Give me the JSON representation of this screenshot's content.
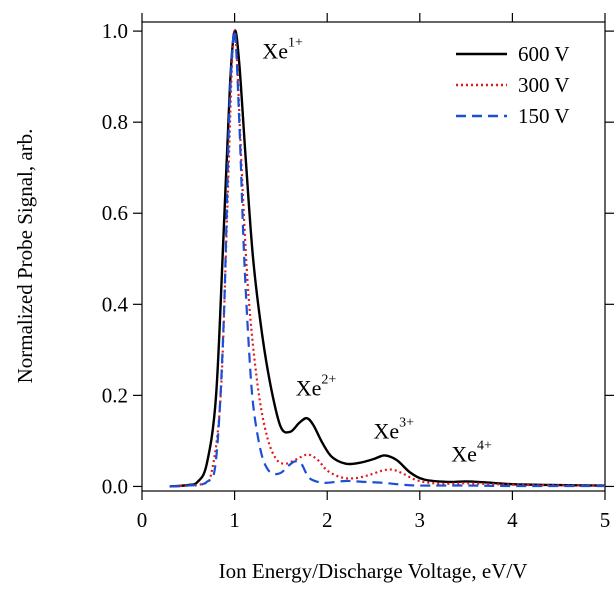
{
  "chart_data": {
    "type": "line",
    "xlabel": "Ion Energy/Discharge Voltage, eV/V",
    "ylabel": "Normalized Probe Signal, arb.",
    "xlim": [
      0,
      5
    ],
    "ylim": [
      -0.01,
      1.02
    ],
    "x_ticks": [
      "0",
      "1",
      "2",
      "3",
      "4",
      "5"
    ],
    "y_ticks": [
      "0.0",
      "0.2",
      "0.4",
      "0.6",
      "0.8",
      "1.0"
    ],
    "grid": false,
    "legend_position": "top-right",
    "series": [
      {
        "name": "600 V",
        "color": "#000000",
        "style": "solid",
        "x": [
          0.3,
          0.5,
          0.6,
          0.7,
          0.8,
          0.88,
          0.95,
          1.0,
          1.05,
          1.12,
          1.2,
          1.3,
          1.4,
          1.5,
          1.6,
          1.7,
          1.78,
          1.85,
          1.95,
          2.05,
          2.2,
          2.35,
          2.5,
          2.62,
          2.75,
          2.9,
          3.05,
          3.3,
          3.5,
          3.7,
          4.0,
          4.5,
          5.0
        ],
        "y": [
          0.0,
          0.003,
          0.01,
          0.05,
          0.2,
          0.55,
          0.88,
          1.0,
          0.93,
          0.72,
          0.5,
          0.33,
          0.21,
          0.13,
          0.12,
          0.14,
          0.15,
          0.135,
          0.095,
          0.065,
          0.05,
          0.052,
          0.06,
          0.068,
          0.058,
          0.03,
          0.015,
          0.01,
          0.011,
          0.009,
          0.005,
          0.003,
          0.002
        ]
      },
      {
        "name": "300 V",
        "color": "#e11b1b",
        "style": "dotted",
        "x": [
          0.3,
          0.5,
          0.65,
          0.75,
          0.85,
          0.92,
          0.97,
          1.0,
          1.03,
          1.08,
          1.15,
          1.25,
          1.35,
          1.45,
          1.55,
          1.65,
          1.72,
          1.8,
          1.9,
          2.0,
          2.15,
          2.3,
          2.45,
          2.6,
          2.7,
          2.8,
          2.95,
          3.1,
          3.3,
          3.5,
          3.8,
          4.2,
          5.0
        ],
        "y": [
          0.0,
          0.002,
          0.006,
          0.03,
          0.2,
          0.6,
          0.92,
          1.0,
          0.92,
          0.68,
          0.42,
          0.22,
          0.11,
          0.06,
          0.05,
          0.058,
          0.065,
          0.07,
          0.058,
          0.035,
          0.02,
          0.018,
          0.025,
          0.035,
          0.037,
          0.03,
          0.015,
          0.008,
          0.006,
          0.007,
          0.005,
          0.003,
          0.002
        ]
      },
      {
        "name": "150 V",
        "color": "#1a4fd6",
        "style": "dashed",
        "x": [
          0.3,
          0.5,
          0.7,
          0.8,
          0.88,
          0.94,
          0.98,
          1.0,
          1.02,
          1.06,
          1.1,
          1.15,
          1.2,
          1.28,
          1.35,
          1.42,
          1.5,
          1.58,
          1.65,
          1.72,
          1.8,
          1.9,
          2.0,
          2.2,
          2.4,
          2.6,
          2.8,
          3.0,
          3.5,
          4.0,
          5.0
        ],
        "y": [
          0.0,
          0.002,
          0.01,
          0.06,
          0.35,
          0.8,
          0.97,
          1.0,
          0.95,
          0.75,
          0.52,
          0.32,
          0.18,
          0.08,
          0.04,
          0.028,
          0.03,
          0.045,
          0.055,
          0.05,
          0.02,
          0.01,
          0.008,
          0.012,
          0.01,
          0.008,
          0.004,
          0.002,
          0.002,
          0.001,
          0.001
        ]
      }
    ],
    "annotations": [
      {
        "base": "Xe",
        "sup": "1+",
        "x": 1.3,
        "y": 0.94
      },
      {
        "base": "Xe",
        "sup": "2+",
        "x": 1.66,
        "y": 0.2
      },
      {
        "base": "Xe",
        "sup": "3+",
        "x": 2.5,
        "y": 0.105
      },
      {
        "base": "Xe",
        "sup": "4+",
        "x": 3.34,
        "y": 0.055
      }
    ]
  }
}
